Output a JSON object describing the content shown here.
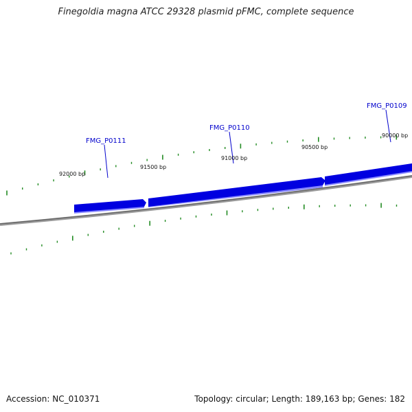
{
  "title": "Finegoldia magna ATCC 29328 plasmid pFMC, complete sequence",
  "footer": {
    "accession": "Accession: NC_010371",
    "summary": "Topology: circular; Length: 189,163 bp; Genes: 182"
  },
  "scale_labels": [
    "92000 bp",
    "91500 bp",
    "91000 bp",
    "90500 bp",
    "90000 bp"
  ],
  "genes": [
    {
      "name": "FMG_P0111",
      "strand": "reverse"
    },
    {
      "name": "FMG_P0110",
      "strand": "reverse"
    },
    {
      "name": "FMG_P0109",
      "strand": "reverse"
    }
  ],
  "colors": {
    "gene": "#0000e0",
    "gene_shadow": "#8080ff",
    "backbone": "#888888",
    "ticks": "#228B22",
    "label": "#0000cc"
  }
}
